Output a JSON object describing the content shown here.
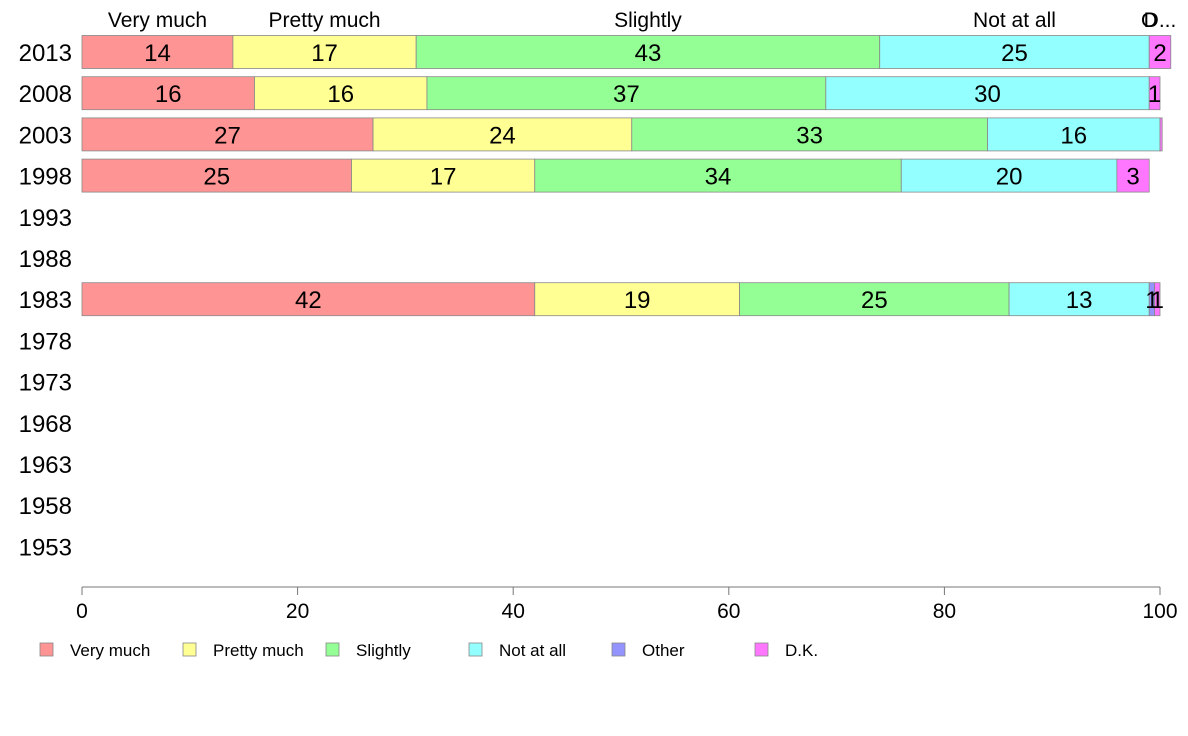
{
  "chart_data": {
    "type": "bar",
    "orientation": "horizontal",
    "stacked": true,
    "categories": [
      "2013",
      "2008",
      "2003",
      "1998",
      "1993",
      "1988",
      "1983",
      "1978",
      "1973",
      "1968",
      "1963",
      "1958",
      "1953"
    ],
    "series": [
      {
        "name": "Very much",
        "color": "#ff9494",
        "values": [
          14,
          16,
          27,
          25,
          null,
          null,
          42,
          null,
          null,
          null,
          null,
          null,
          null
        ]
      },
      {
        "name": "Pretty much",
        "color": "#ffff94",
        "values": [
          17,
          16,
          24,
          17,
          null,
          null,
          19,
          null,
          null,
          null,
          null,
          null,
          null
        ]
      },
      {
        "name": "Slightly",
        "color": "#94ff94",
        "values": [
          43,
          37,
          33,
          34,
          null,
          null,
          25,
          null,
          null,
          null,
          null,
          null,
          null
        ]
      },
      {
        "name": "Not at all",
        "color": "#94ffff",
        "values": [
          25,
          30,
          16,
          20,
          null,
          null,
          13,
          null,
          null,
          null,
          null,
          null,
          null
        ]
      },
      {
        "name": "Other",
        "color": "#9494ff",
        "values": [
          0,
          0,
          0,
          0,
          null,
          null,
          0.5,
          null,
          null,
          null,
          null,
          null,
          null
        ]
      },
      {
        "name": "D.K.",
        "color": "#ff77ff",
        "values": [
          2,
          1,
          0.2,
          3,
          null,
          null,
          0.5,
          null,
          null,
          null,
          null,
          null,
          null
        ]
      }
    ],
    "value_labels": [
      [
        "14",
        "17",
        "43",
        "25",
        "",
        "2"
      ],
      [
        "16",
        "16",
        "37",
        "30",
        "",
        "1"
      ],
      [
        "27",
        "24",
        "33",
        "16",
        "",
        ""
      ],
      [
        "25",
        "17",
        "34",
        "20",
        "",
        "3"
      ],
      [],
      [],
      [
        "42",
        "19",
        "25",
        "13",
        "1",
        "1"
      ],
      [],
      [],
      [],
      [],
      [],
      []
    ],
    "top_labels": [
      "Very much",
      "Pretty much",
      "Slightly",
      "Not at all",
      "O",
      "D..."
    ],
    "xlim": [
      0,
      100
    ],
    "xticks": [
      0,
      20,
      40,
      60,
      80,
      100
    ],
    "xlabel": "",
    "ylabel": "",
    "title": "",
    "grid": false,
    "legend_position": "bottom"
  }
}
